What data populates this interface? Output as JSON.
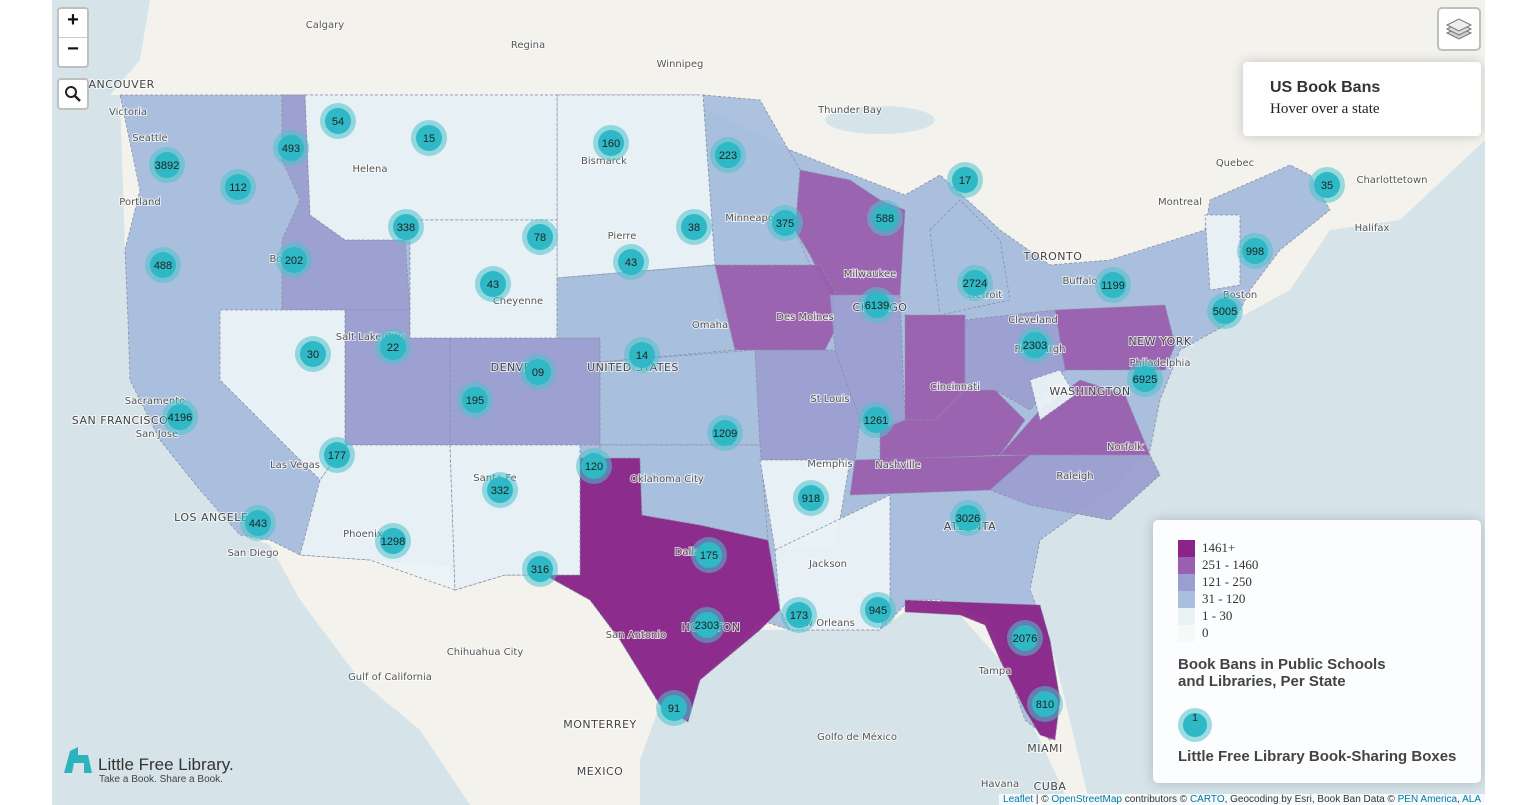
{
  "controls": {
    "zoom_in": "+",
    "zoom_out": "−"
  },
  "info": {
    "title": "US Book Bans",
    "subtitle": "Hover over a state"
  },
  "legend": {
    "classes": [
      {
        "label": "1461+",
        "color": "#8a2488"
      },
      {
        "label": "251 - 1460",
        "color": "#9a5fae"
      },
      {
        "label": "121 - 250",
        "color": "#9b9fd0"
      },
      {
        "label": "31 - 120",
        "color": "#a9bfdd"
      },
      {
        "label": "1 - 30",
        "color": "#e9f2f5"
      },
      {
        "label": "0",
        "color": "#f7f8f8"
      }
    ],
    "title_lines": [
      "Book Bans in Public Schools",
      "and Libraries, Per State"
    ],
    "cluster_sample": "1",
    "cluster_label": "Little Free Library Book-Sharing Boxes"
  },
  "logo": {
    "name": "Little Free Library.",
    "tagline": "Take a Book. Share a Book."
  },
  "clusters": [
    "54",
    "15",
    "160",
    "223",
    "493",
    "3892",
    "112",
    "17",
    "35",
    "338",
    "78",
    "38",
    "375",
    "588",
    "998",
    "488",
    "202",
    "43",
    "43",
    "2724",
    "1199",
    "6139",
    "5005",
    "30",
    "22",
    "09",
    "14",
    "2303",
    "6925",
    "4196",
    "195",
    "1261",
    "1209",
    "177",
    "120",
    "332",
    "918",
    "3026",
    "443",
    "1298",
    "175",
    "316",
    "173",
    "945",
    "2303",
    "2076",
    "91",
    "810"
  ],
  "places": [
    "Calgary",
    "Regina",
    "Winnipeg",
    "VANCOUVER",
    "Victoria",
    "Seattle",
    "Portland",
    "Helena",
    "Bismarck",
    "Thunder Bay",
    "Quebec",
    "Charlottetown",
    "Montreal",
    "Halifax",
    "Minneapolis",
    "Pierre",
    "Boise",
    "TORONTO",
    "Milwaukee",
    "Buffalo",
    "Detroit",
    "Boston",
    "Cheyenne",
    "CHICAGO",
    "Omaha",
    "Des Moines",
    "Cleveland",
    "Salt Lake City",
    "NEW YORK",
    "Pittsburgh",
    "DENVER",
    "UNITED STATES",
    "Philadelphia",
    "Cincinnati",
    "WASHINGTON",
    "Sacramento",
    "St Louis",
    "SAN FRANCISCO",
    "San Jose",
    "Norfolk",
    "Nashville",
    "Las Vegas",
    "Oklahoma City",
    "Raleigh",
    "Santa Fe",
    "Memphis",
    "ATLANTA",
    "LOS ANGELES",
    "Phoenix",
    "Dallas",
    "San Diego",
    "Jackson",
    "New Orleans",
    "HOUSTON",
    "San Antonio",
    "Chihuahua City",
    "Tampa",
    "Gulf of California",
    "MONTERREY",
    "MIAMI",
    "Golfo de México",
    "MEXICO",
    "Havana",
    "CUBA"
  ],
  "attribution": [
    "Leaflet",
    " | © ",
    "OpenStreetMap",
    " contributors © ",
    "CARTO",
    ", Geocoding by Esri, Book Ban Data © ",
    "PEN America",
    ", ",
    "ALA"
  ]
}
